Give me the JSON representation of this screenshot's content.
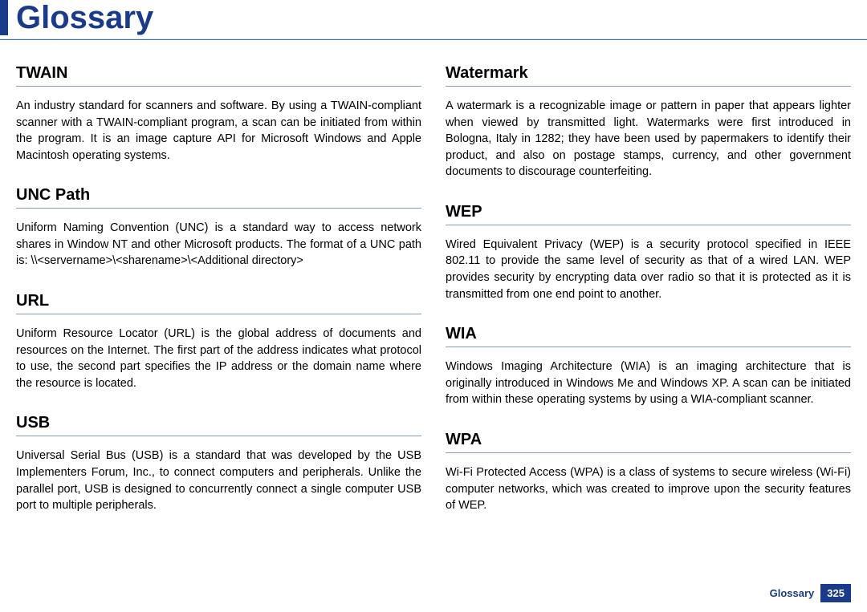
{
  "page": {
    "title": "Glossary",
    "footer_label": "Glossary",
    "page_number": "325"
  },
  "colors": {
    "brand": "#1a3a8a",
    "divider": "#8899bb",
    "text": "#000000",
    "background": "#ffffff"
  },
  "typography": {
    "title_fontsize": 40,
    "heading_fontsize": 20,
    "body_fontsize": 14.5,
    "footer_fontsize": 13
  },
  "left_column": [
    {
      "term": "TWAIN",
      "definition": "An industry standard for scanners and software. By using a TWAIN-compliant scanner with a TWAIN-compliant program, a scan can be initiated from within the program. It is an image capture API for Microsoft Windows and Apple Macintosh operating systems."
    },
    {
      "term": "UNC Path",
      "definition": "Uniform Naming Convention (UNC) is a standard way to access network shares in Window NT and other Microsoft products. The format of a UNC path is: \\\\<servername>\\<sharename>\\<Additional directory>"
    },
    {
      "term": "URL",
      "definition": "Uniform Resource Locator (URL) is the global address of documents and resources on the Internet. The first part of the address indicates what protocol to use, the second part specifies the IP address or the domain name where the resource is located."
    },
    {
      "term": "USB",
      "definition": "Universal Serial Bus (USB) is a standard that was developed by the USB Implementers Forum, Inc., to connect computers and peripherals. Unlike the parallel port, USB is designed to concurrently connect a single computer USB port to multiple peripherals."
    }
  ],
  "right_column": [
    {
      "term": "Watermark",
      "definition": "A watermark is a recognizable image or pattern in paper that appears lighter when viewed by transmitted light. Watermarks were first introduced in Bologna, Italy in 1282; they have been used by papermakers to identify their product, and also on postage stamps, currency, and other government documents to discourage counterfeiting."
    },
    {
      "term": "WEP",
      "definition": "Wired Equivalent Privacy (WEP) is a security protocol specified in IEEE 802.11 to provide the same level of security as that of a wired LAN. WEP provides security by encrypting data over radio so that it is protected as it is transmitted from one end point to another."
    },
    {
      "term": "WIA",
      "definition": "Windows Imaging Architecture (WIA) is an imaging architecture that is originally introduced in Windows Me and Windows XP. A scan can be initiated from within these operating systems by using a WIA-compliant scanner."
    },
    {
      "term": "WPA",
      "definition": "Wi-Fi Protected Access (WPA) is a class of systems to secure wireless (Wi-Fi) computer networks, which was created to improve upon the security features of WEP."
    }
  ]
}
